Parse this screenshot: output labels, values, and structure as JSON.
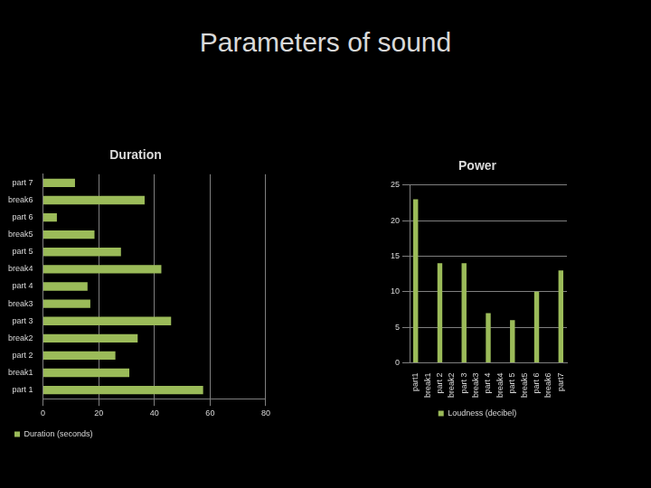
{
  "title": "Parameters of sound",
  "chart_data": [
    {
      "type": "bar",
      "title": "Duration",
      "orientation": "horizontal",
      "categories": [
        "part 1",
        "break1",
        "part 2",
        "break2",
        "part 3",
        "break3",
        "part 4",
        "break4",
        "part 5",
        "break5",
        "part 6",
        "break6",
        "part 7"
      ],
      "series": [
        {
          "name": "Duration (seconds)",
          "color": "#9bbb59",
          "values": [
            57.5,
            31,
            26,
            34,
            46,
            17,
            16,
            42.5,
            28,
            18.5,
            5,
            36.5,
            11.5
          ]
        }
      ],
      "xlim": [
        0,
        80
      ],
      "xticks": [
        0,
        20,
        40,
        60,
        80
      ],
      "grid": true,
      "legend": "bottom"
    },
    {
      "type": "bar",
      "title": "Power",
      "categories": [
        "part1",
        "break1",
        "part 2",
        "break2",
        "part 3",
        "break3",
        "part 4",
        "break4",
        "part 5",
        "break5",
        "part 6",
        "break6",
        "part7"
      ],
      "series": [
        {
          "name": "Loudness (decibel)",
          "color": "#9bbb59",
          "values": [
            23,
            0,
            14,
            0,
            14,
            0,
            7,
            0,
            6,
            0,
            10,
            0,
            13
          ]
        }
      ],
      "ylim": [
        0,
        25
      ],
      "yticks": [
        0,
        5,
        10,
        15,
        20,
        25
      ],
      "grid": true,
      "legend": "bottom"
    }
  ]
}
